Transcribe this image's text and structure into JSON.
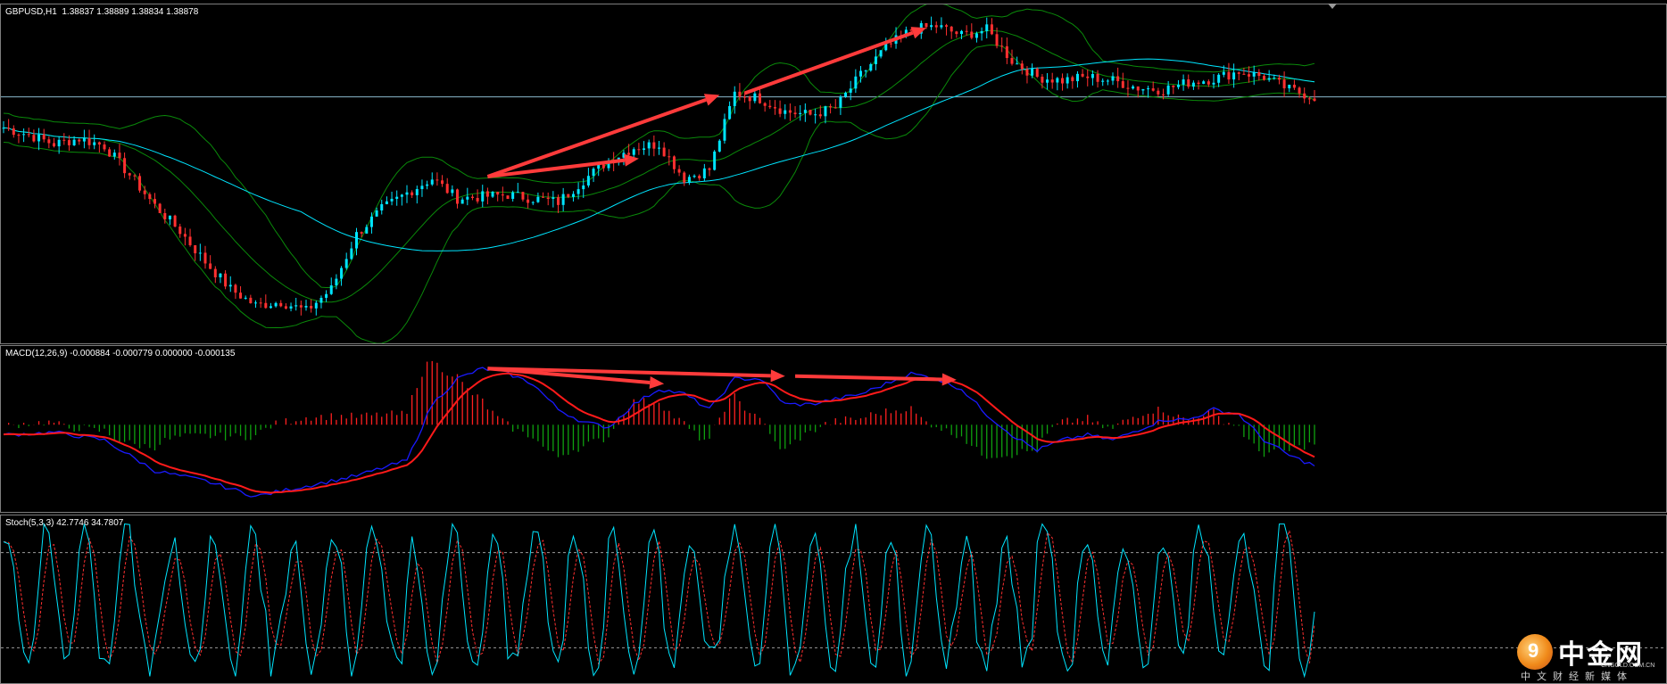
{
  "main_pane": {
    "label": "GBPUSD,H1  1.38837 1.38889 1.38834 1.38878"
  },
  "macd_pane": {
    "label": "MACD(12,26,9) -0.000884 -0.000779 0.000000 -0.000135"
  },
  "stoch_pane": {
    "label": "Stoch(5,3,3) 42.7746 34.7807"
  },
  "watermark": {
    "brand": "中金网",
    "url": "CNGOLD.COM.CN",
    "tagline": "中文财经新媒体",
    "icon": "cngold-logo-icon"
  },
  "colors": {
    "background": "#000000",
    "bull_candle": "#00e5ff",
    "bear_candle": "#ff3030",
    "ma_line": "#00e5ff",
    "bollinger": "#0a8a0a",
    "macd_main": "#1a1aff",
    "macd_signal": "#ff1a1a",
    "macd_hist_pos": "#ff2020",
    "macd_hist_neg": "#0fa00f",
    "stoch_main": "#00e5ff",
    "stoch_signal": "#ff3030",
    "arrow": "#ff3b3b",
    "level_line": "#8ab8cc"
  },
  "chart_data": [
    {
      "type": "line",
      "subtype": "candlestick",
      "symbol": "GBPUSD",
      "timeframe": "H1",
      "last_ohlc": [
        1.38837,
        1.38889,
        1.38834,
        1.38878
      ],
      "close_path": [
        [
          0,
          1.3871
        ],
        [
          5,
          1.3867
        ],
        [
          10,
          1.3862
        ],
        [
          15,
          1.3865
        ],
        [
          20,
          1.3861
        ],
        [
          25,
          1.3845
        ],
        [
          30,
          1.3828
        ],
        [
          35,
          1.3814
        ],
        [
          40,
          1.3797
        ],
        [
          45,
          1.3782
        ],
        [
          50,
          1.3773
        ],
        [
          55,
          1.3775
        ],
        [
          60,
          1.377
        ],
        [
          65,
          1.3782
        ],
        [
          70,
          1.3812
        ],
        [
          75,
          1.3826
        ],
        [
          80,
          1.3835
        ],
        [
          85,
          1.3843
        ],
        [
          90,
          1.3832
        ],
        [
          95,
          1.3833
        ],
        [
          100,
          1.3834
        ],
        [
          105,
          1.3832
        ],
        [
          110,
          1.383
        ],
        [
          115,
          1.3842
        ],
        [
          120,
          1.3853
        ],
        [
          125,
          1.386
        ],
        [
          130,
          1.3862
        ],
        [
          135,
          1.3843
        ],
        [
          140,
          1.3848
        ],
        [
          145,
          1.389
        ],
        [
          150,
          1.3887
        ],
        [
          155,
          1.388
        ],
        [
          160,
          1.3878
        ],
        [
          165,
          1.3882
        ],
        [
          170,
          1.39
        ],
        [
          175,
          1.3915
        ],
        [
          180,
          1.3925
        ],
        [
          185,
          1.3927
        ],
        [
          190,
          1.3922
        ],
        [
          195,
          1.3925
        ],
        [
          200,
          1.3908
        ],
        [
          205,
          1.3899
        ],
        [
          210,
          1.3897
        ],
        [
          215,
          1.3899
        ],
        [
          220,
          1.3897
        ],
        [
          225,
          1.3893
        ],
        [
          230,
          1.3892
        ],
        [
          235,
          1.3896
        ],
        [
          240,
          1.3898
        ],
        [
          245,
          1.3902
        ],
        [
          250,
          1.3899
        ],
        [
          255,
          1.3892
        ],
        [
          260,
          1.3888
        ]
      ],
      "bollinger": true,
      "horizontal_level": 1.3888,
      "trend_arrows": [
        {
          "from": [
            96,
            1.3844
          ],
          "to": [
            142,
            1.3889
          ]
        },
        {
          "from": [
            96,
            1.3844
          ],
          "to": [
            126,
            1.3854
          ]
        },
        {
          "from": [
            147,
            1.389
          ],
          "to": [
            183,
            1.3926
          ]
        }
      ]
    },
    {
      "type": "bar",
      "name": "MACD(12,26,9)",
      "values_shown": [
        -0.000884,
        -0.000779,
        0.0,
        -0.000135
      ],
      "macd_path": [
        [
          0,
          -0.0002
        ],
        [
          10,
          -0.00015
        ],
        [
          20,
          -0.0003
        ],
        [
          30,
          -0.0009
        ],
        [
          40,
          -0.0011
        ],
        [
          50,
          -0.0014
        ],
        [
          60,
          -0.0012
        ],
        [
          70,
          -0.001
        ],
        [
          80,
          -0.0007
        ],
        [
          85,
          0.0004
        ],
        [
          90,
          0.0009
        ],
        [
          95,
          0.0011
        ],
        [
          100,
          0.001
        ],
        [
          105,
          0.0008
        ],
        [
          110,
          0.0003
        ],
        [
          115,
          5e-05
        ],
        [
          120,
          -5e-05
        ],
        [
          125,
          0.0004
        ],
        [
          130,
          0.0007
        ],
        [
          135,
          0.0006
        ],
        [
          140,
          0.0003
        ],
        [
          145,
          0.0009
        ],
        [
          150,
          0.0009
        ],
        [
          155,
          0.0004
        ],
        [
          160,
          0.0004
        ],
        [
          165,
          0.0005
        ],
        [
          170,
          0.0006
        ],
        [
          175,
          0.0008
        ],
        [
          180,
          0.001
        ],
        [
          185,
          0.0009
        ],
        [
          190,
          0.0007
        ],
        [
          195,
          0.0002
        ],
        [
          200,
          -0.0002
        ],
        [
          205,
          -0.0005
        ],
        [
          210,
          -0.0003
        ],
        [
          215,
          -0.0002
        ],
        [
          220,
          -0.0003
        ],
        [
          225,
          -0.0001
        ],
        [
          230,
          0.0001
        ],
        [
          235,
          0.0001
        ],
        [
          240,
          0.0003
        ],
        [
          245,
          0.0002
        ],
        [
          250,
          -0.0003
        ],
        [
          255,
          -0.0006
        ],
        [
          260,
          -0.0008
        ]
      ],
      "divergence_arrows": [
        {
          "from": [
            96,
            0.0011
          ],
          "to": [
            131,
            0.0008
          ]
        },
        {
          "from": [
            96,
            0.0011
          ],
          "to": [
            155,
            0.00095
          ]
        },
        {
          "from": [
            157,
            0.00095
          ],
          "to": [
            189,
            0.00088
          ]
        }
      ]
    },
    {
      "type": "line",
      "name": "Stoch(5,3,3)",
      "main": 42.7746,
      "signal": 34.7807,
      "levels": [
        80,
        20
      ],
      "ylim": [
        0,
        100
      ]
    }
  ]
}
